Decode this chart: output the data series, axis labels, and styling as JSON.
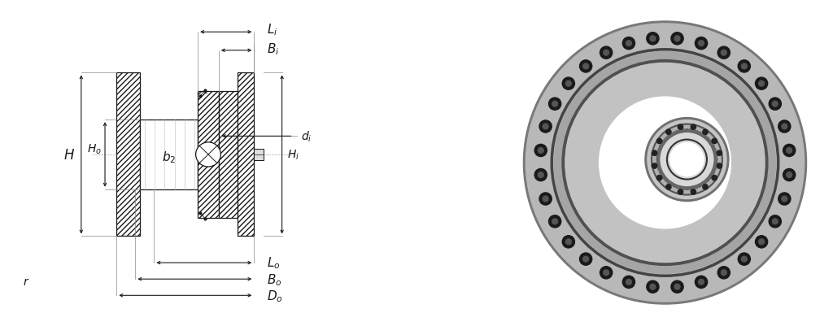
{
  "fig_width": 10.24,
  "fig_height": 4.02,
  "bg_color": "#ffffff",
  "line_color": "#1a1a1a",
  "labels": {
    "L_i": "L$_i$",
    "B_i": "B$_i$",
    "d_i": "d$_i$",
    "H": "H",
    "H_o": "H$_o$",
    "b_2": "b$_2$",
    "H_i": "H$_i$",
    "L_o": "L$_o$",
    "B_o": "B$_o$",
    "D_o": "D$_o$"
  },
  "font_size": 10,
  "note": "r"
}
